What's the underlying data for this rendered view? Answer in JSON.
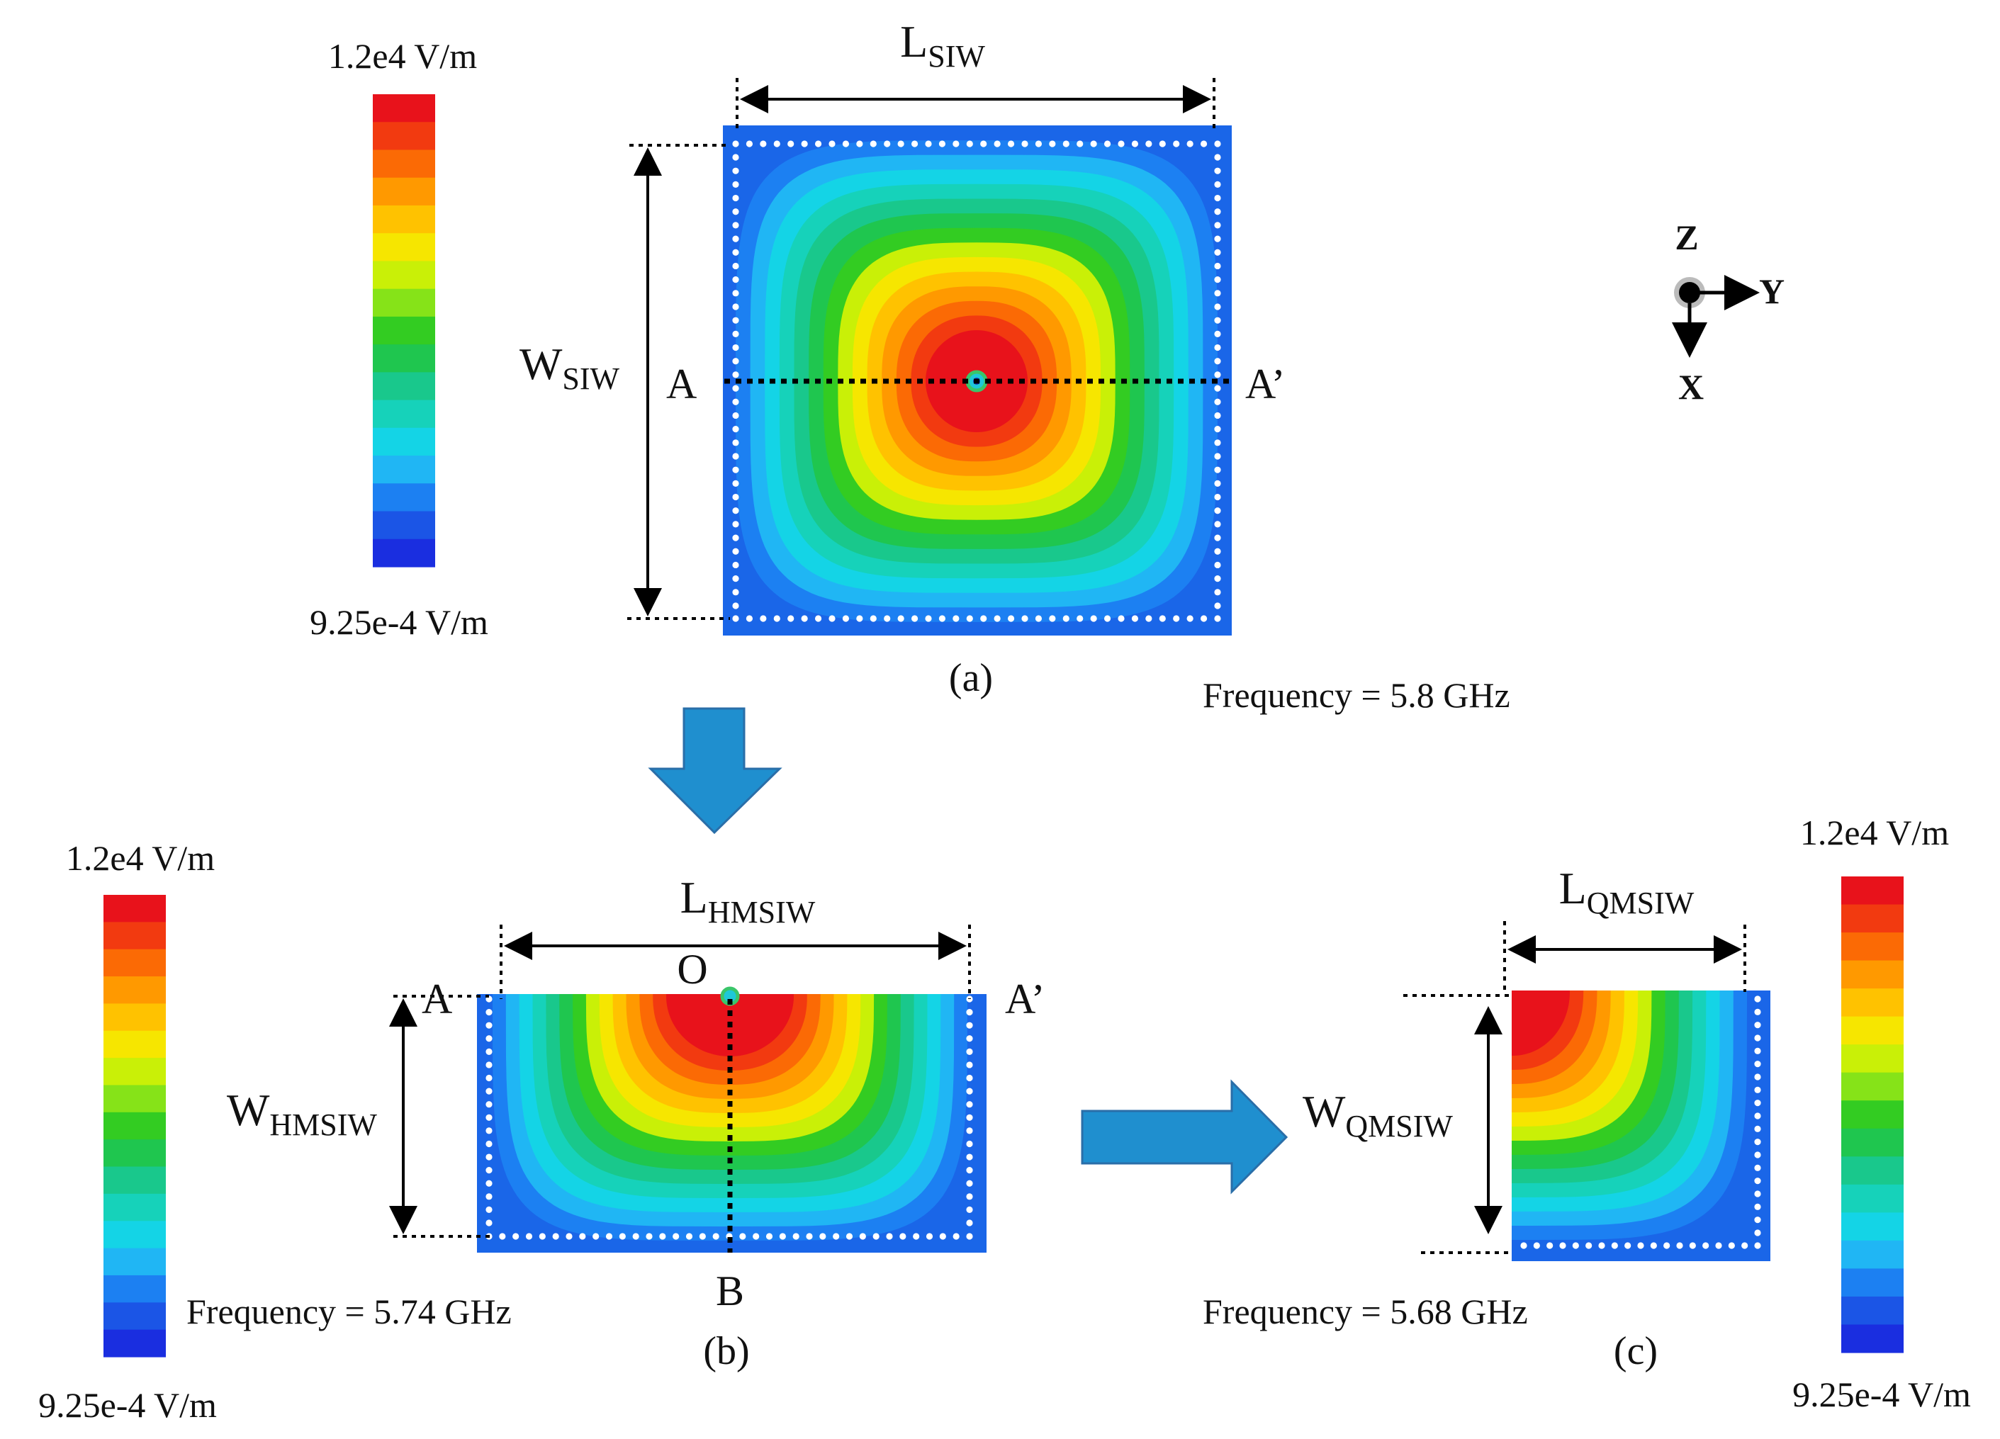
{
  "figure": {
    "colorbar_top": {
      "max_label": "1.2e4 V/m",
      "min_label": "9.25e-4 V/m"
    },
    "colorbar_left": {
      "max_label": "1.2e4 V/m",
      "min_label": "9.25e-4 V/m"
    },
    "colorbar_right": {
      "max_label": "1.2e4 V/m",
      "min_label": "9.25e-4 V/m"
    },
    "colorbar_colors": [
      "#e8121b",
      "#f23a10",
      "#fb6a05",
      "#ff9900",
      "#ffc200",
      "#f6e600",
      "#c9f007",
      "#86e318",
      "#33cc22",
      "#1fc64f",
      "#19c88c",
      "#16d2ba",
      "#14d4e6",
      "#20b6f4",
      "#1c80f2",
      "#1b55e6",
      "#1a2ee0"
    ],
    "panel_a": {
      "caption": "(a)",
      "frequency": "Frequency = 5.8 GHz",
      "length_label": {
        "main": "L",
        "sub": "SIW"
      },
      "width_label": {
        "main": "W",
        "sub": "SIW"
      },
      "point_a": "A",
      "point_a_prime": "A’"
    },
    "panel_b": {
      "caption": "(b)",
      "frequency": "Frequency = 5.74 GHz",
      "length_label": {
        "main": "L",
        "sub": "HMSIW"
      },
      "width_label": {
        "main": "W",
        "sub": "HMSIW"
      },
      "point_a": "A",
      "point_a_prime": "A’",
      "point_o": "O",
      "point_b": "B"
    },
    "panel_c": {
      "caption": "(c)",
      "frequency": "Frequency = 5.68 GHz",
      "length_label": {
        "main": "L",
        "sub": "QMSIW"
      },
      "width_label": {
        "main": "W",
        "sub": "QMSIW"
      }
    },
    "axes_legend": {
      "z": "Z",
      "y": "Y",
      "x": "X"
    },
    "contour_colors": [
      "#e8121b",
      "#f23a10",
      "#fb6a05",
      "#ff9900",
      "#ffc200",
      "#f6e600",
      "#c9f007",
      "#33cc22",
      "#1fc64f",
      "#19c88c",
      "#16d2ba",
      "#14d4e6",
      "#20b6f4",
      "#1c80f2"
    ],
    "substrate_color": "#1a66e8",
    "arrow_color": "#1f8fcf"
  }
}
